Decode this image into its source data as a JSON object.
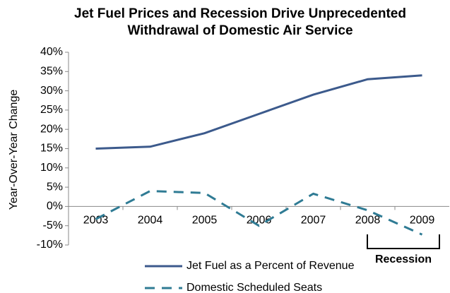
{
  "chart_data": {
    "type": "line",
    "title": [
      "Jet Fuel Prices and Recession Drive Unprecedented",
      "Withdrawal of Domestic Air Service"
    ],
    "y_label": "Year-Over-Year Change",
    "categories": [
      "2003",
      "2004",
      "2005",
      "2006",
      "2007",
      "2008",
      "2009"
    ],
    "series": [
      {
        "name": "Jet Fuel as a Percent of Revenue",
        "color": "#3c5a8c",
        "style": "solid",
        "values": [
          15,
          15.5,
          19,
          24,
          29,
          33,
          34
        ]
      },
      {
        "name": "Domestic Scheduled Seats",
        "color": "#2f7b94",
        "style": "dashed",
        "values": [
          -3.3,
          4,
          3.5,
          -5,
          3.3,
          -1,
          -7.3
        ]
      }
    ],
    "ylim": [
      -10,
      40
    ],
    "yticks": [
      {
        "value": -10,
        "label": "-10%"
      },
      {
        "value": -5,
        "label": "-5%"
      },
      {
        "value": 0,
        "label": "0%"
      },
      {
        "value": 5,
        "label": "5%"
      },
      {
        "value": 10,
        "label": "10%"
      },
      {
        "value": 15,
        "label": "15%"
      },
      {
        "value": 20,
        "label": "20%"
      },
      {
        "value": 25,
        "label": "25%"
      },
      {
        "value": 30,
        "label": "30%"
      },
      {
        "value": 35,
        "label": "35%"
      },
      {
        "value": 40,
        "label": "40%"
      }
    ],
    "annotation": "Recession",
    "legend": "bottom"
  }
}
